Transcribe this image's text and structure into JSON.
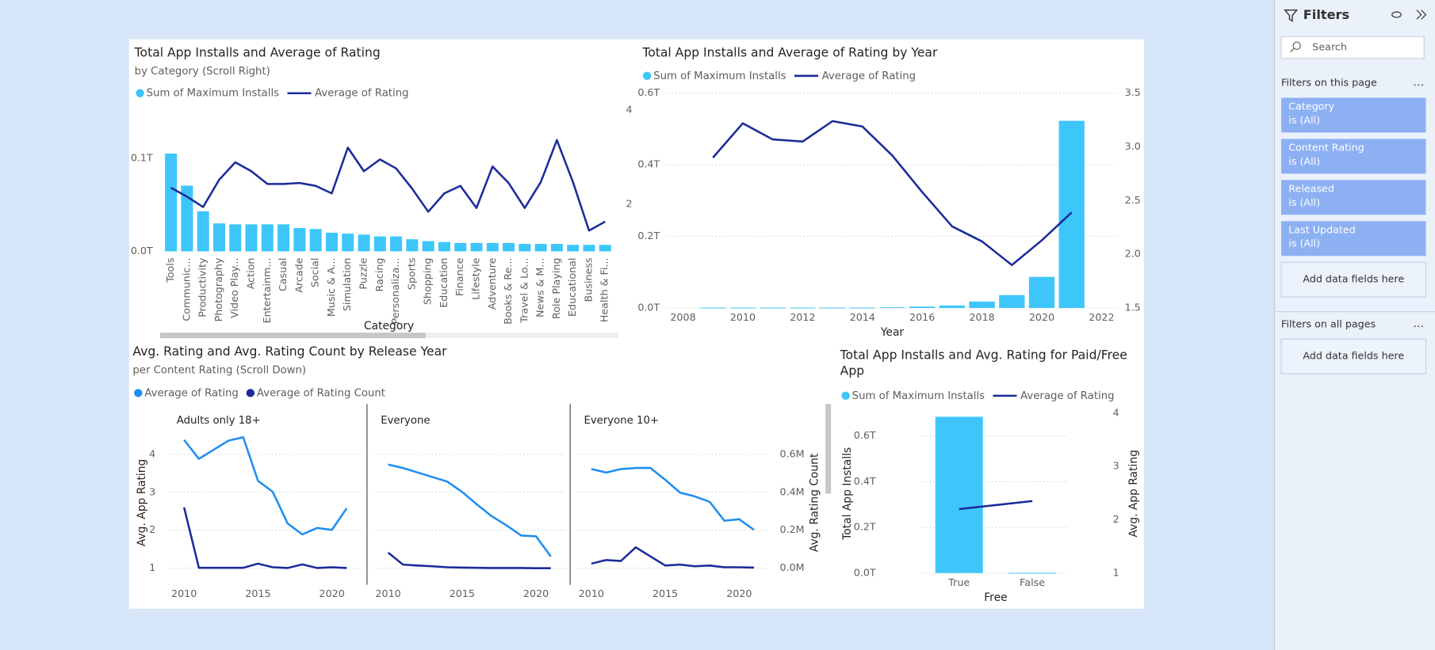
{
  "chart_data": [
    {
      "type": "combo",
      "title": "Total App Installs and Average of Rating",
      "subtitle": "by Category (Scroll Right)",
      "xlabel": "Category",
      "categories": [
        "Tools",
        "Communic...",
        "Productivity",
        "Photography",
        "Video Play...",
        "Action",
        "Entertainm...",
        "Casual",
        "Arcade",
        "Social",
        "Music & A...",
        "Simulation",
        "Puzzle",
        "Racing",
        "Personaliza...",
        "Sports",
        "Shopping",
        "Education",
        "Finance",
        "Lifestyle",
        "Adventure",
        "Books & Re...",
        "Travel & Lo...",
        "News & M...",
        "Role Playing",
        "Educational",
        "Business",
        "Health & Fi..."
      ],
      "series": [
        {
          "name": "Sum of Maximum Installs",
          "type": "bar",
          "color": "#3ec6fb",
          "values": [
            0.105,
            0.0706,
            0.043,
            0.03,
            0.029,
            0.029,
            0.029,
            0.029,
            0.025,
            0.024,
            0.02,
            0.019,
            0.018,
            0.016,
            0.016,
            0.013,
            0.011,
            0.01,
            0.009,
            0.009,
            0.009,
            0.009,
            0.008,
            0.008,
            0.008,
            0.007,
            0.007,
            0.007
          ]
        },
        {
          "name": "Average of Rating",
          "type": "line",
          "color": "#1b2a9a",
          "axis": "y2",
          "values": [
            2.35,
            2.16,
            1.94,
            2.52,
            2.89,
            2.7,
            2.43,
            2.43,
            2.45,
            2.39,
            2.23,
            3.2,
            2.7,
            2.95,
            2.76,
            2.33,
            1.84,
            2.23,
            2.39,
            1.92,
            2.8,
            2.45,
            1.92,
            2.47,
            3.36,
            2.47,
            1.44,
            1.63
          ]
        }
      ],
      "ylim": [
        0,
        0.162
      ],
      "yticks": [
        {
          "value": 0,
          "label": "0.0T"
        },
        {
          "value": 0.1,
          "label": "0.1T"
        }
      ],
      "y2lim": [
        1,
        4.2
      ],
      "y2ticks": [
        2,
        4
      ],
      "grid": false
    },
    {
      "type": "combo",
      "title": "Total App Installs and Average of Rating by Year",
      "xlabel": "Year",
      "x": [
        2009,
        2010,
        2011,
        2012,
        2013,
        2014,
        2015,
        2016,
        2017,
        2018,
        2019,
        2020,
        2021
      ],
      "series": [
        {
          "name": "Sum of Maximum Installs",
          "type": "bar",
          "color": "#3ec6fb",
          "values": [
            0.001,
            0.001,
            0.001,
            0.001,
            0.001,
            0.001,
            0.002,
            0.004,
            0.007,
            0.018,
            0.036,
            0.087,
            0.523
          ]
        },
        {
          "name": "Average of Rating",
          "type": "line",
          "color": "#1b2a9a",
          "axis": "y2",
          "values": [
            2.9,
            3.22,
            3.07,
            3.05,
            3.24,
            3.19,
            2.92,
            2.58,
            2.26,
            2.12,
            1.9,
            2.13,
            2.39
          ]
        }
      ],
      "xlim": [
        2007.5,
        2022.5
      ],
      "xticks": [
        2008,
        2010,
        2012,
        2014,
        2016,
        2018,
        2020,
        2022
      ],
      "ylim": [
        0,
        0.6
      ],
      "yticks": [
        {
          "value": 0,
          "label": "0.0T"
        },
        {
          "value": 0.2,
          "label": "0.2T"
        },
        {
          "value": 0.4,
          "label": "0.4T"
        },
        {
          "value": 0.6,
          "label": "0.6T"
        }
      ],
      "y2lim": [
        1.5,
        3.5
      ],
      "y2ticks": [
        1.5,
        {
          "value": 2,
          "label": "2.0"
        },
        2.5,
        {
          "value": 3,
          "label": "3.0"
        },
        3.5
      ],
      "grid": true
    },
    {
      "type": "line",
      "title": "Avg. Rating and Avg. Rating Count by Release Year",
      "subtitle": "per Content Rating (Scroll Down)",
      "ylabel": "Avg. App Rating",
      "y2label": "Avg. Rating Count",
      "panels": [
        "Adults only 18+",
        "Everyone",
        "Everyone 10+"
      ],
      "x": [
        2010,
        2011,
        2012,
        2013,
        2014,
        2015,
        2016,
        2017,
        2018,
        2019,
        2020,
        2021
      ],
      "series": [
        {
          "name": "Average of Rating",
          "color": "#1e8ef0",
          "values": [
            [
              4.38,
              3.88,
              4.12,
              4.36,
              4.45,
              3.3,
              3.01,
              2.18,
              1.89,
              2.06,
              2.01,
              2.58
            ],
            [
              3.73,
              3.64,
              3.52,
              3.4,
              3.28,
              3.01,
              2.68,
              2.37,
              2.13,
              1.86,
              1.84,
              1.31
            ],
            [
              3.61,
              3.52,
              3.61,
              3.64,
              3.64,
              3.33,
              2.99,
              2.89,
              2.75,
              2.25,
              2.29,
              2.01
            ]
          ]
        },
        {
          "name": "Average of Rating Count",
          "color": "#1b2a9a",
          "axis": "y2",
          "values": [
            [
              0.32,
              0.002,
              0.002,
              0.002,
              0.002,
              0.024,
              0.005,
              0.001,
              0.02,
              0.001,
              0.005,
              0.001
            ],
            [
              0.082,
              0.019,
              0.014,
              0.01,
              0.005,
              0.003,
              0.002,
              0.001,
              0.001,
              0.001,
              0.0,
              0.0
            ],
            [
              0.024,
              0.043,
              0.038,
              0.11,
              0.062,
              0.014,
              0.019,
              0.01,
              0.014,
              0.005,
              0.005,
              0.003
            ]
          ]
        }
      ],
      "xlim": [
        2009,
        2022
      ],
      "xticks": [
        2010,
        2015,
        2020
      ],
      "ylim": [
        0.8,
        4.7
      ],
      "yticks": [
        1,
        2,
        3,
        4
      ],
      "y2lim": [
        -0.04,
        0.74
      ],
      "y2ticks": [
        {
          "value": 0,
          "label": "0.0M"
        },
        {
          "value": 0.2,
          "label": "0.2M"
        },
        {
          "value": 0.4,
          "label": "0.4M"
        },
        {
          "value": 0.6,
          "label": "0.6M"
        }
      ],
      "grid": true
    },
    {
      "type": "combo",
      "title": "Total App Installs and Avg. Rating for Paid/Free App",
      "xlabel": "Free",
      "ylabel": "Total App Installs",
      "y2label": "Avg. App Rating",
      "categories": [
        "True",
        "False"
      ],
      "series": [
        {
          "name": "Sum of Maximum Installs",
          "type": "bar",
          "color": "#3ec6fb",
          "values": [
            0.684,
            0.001
          ]
        },
        {
          "name": "Average of Rating",
          "type": "line",
          "color": "#1b2a9a",
          "axis": "y2",
          "values": [
            2.2,
            2.35
          ]
        }
      ],
      "ylim": [
        0,
        0.7
      ],
      "yticks": [
        {
          "value": 0,
          "label": "0.0T"
        },
        {
          "value": 0.2,
          "label": "0.2T"
        },
        {
          "value": 0.4,
          "label": "0.4T"
        },
        {
          "value": 0.6,
          "label": "0.6T"
        }
      ],
      "y2lim": [
        1,
        4
      ],
      "y2ticks": [
        1,
        2,
        3,
        4
      ],
      "grid": true
    }
  ],
  "filters": {
    "title": "Filters",
    "search": "Search",
    "this_page": "Filters on this page",
    "cards": [
      {
        "field": "Category",
        "state": "is (All)"
      },
      {
        "field": "Content Rating",
        "state": "is (All)"
      },
      {
        "field": "Released",
        "state": "is (All)"
      },
      {
        "field": "Last Updated",
        "state": "is (All)"
      }
    ],
    "add_this_page": "Add data fields here",
    "all_pages": "Filters on all pages",
    "add_all_pages": "Add data fields here"
  }
}
